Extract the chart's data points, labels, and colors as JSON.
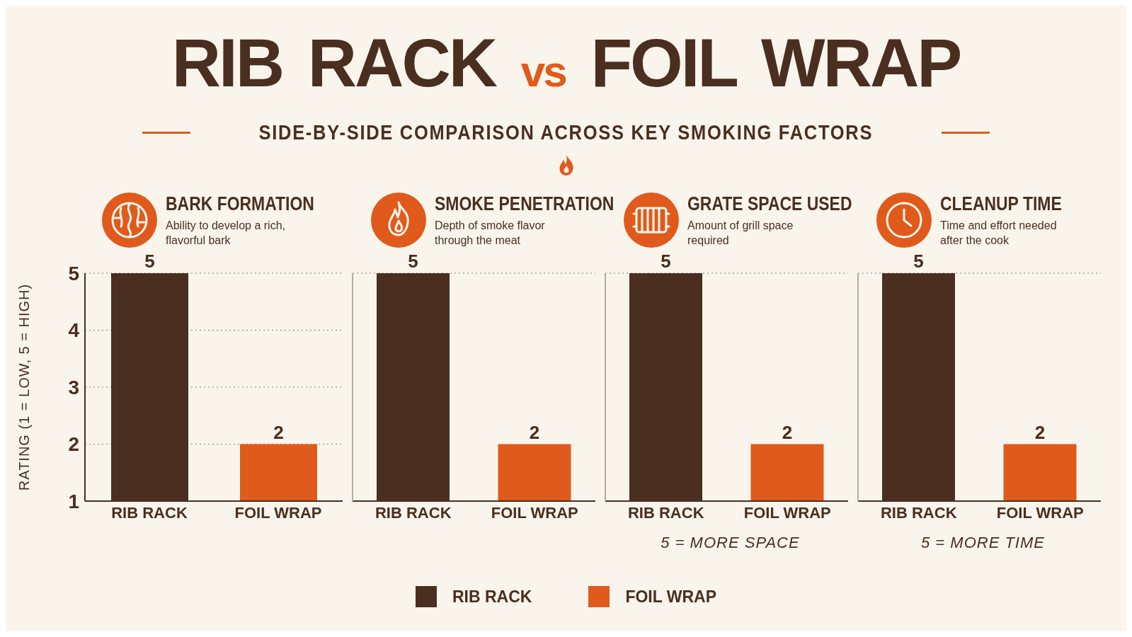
{
  "chart_data": [
    {
      "type": "other",
      "title": "RIB RACK vs FOIL WRAP",
      "subtitle": "SIDE-BY-SIDE COMPARISON ACROSS KEY SMOKING FACTORS"
    },
    {
      "type": "bar",
      "title": "BARK FORMATION",
      "subtitle": "Ability to develop a rich, flavorful bark",
      "ylabel": "RATING (1 = LOW, 5 = HIGH)",
      "categories": [
        "RIB RACK",
        "FOIL WRAP"
      ],
      "stacked": true,
      "series": [
        {
          "name": "RIB RACK",
          "color": "#4a2e20",
          "values": [
            5,
            null
          ]
        },
        {
          "name": "FOIL WRAP",
          "color": "#e05a1c",
          "values": [
            null,
            2
          ]
        }
      ],
      "ylim": [
        1,
        5
      ],
      "yticks": [
        1,
        2,
        3,
        4,
        5
      ],
      "grid": "y",
      "data_labels": true,
      "legend": "bottom"
    },
    {
      "type": "bar",
      "title": "SMOKE PENETRATION",
      "subtitle": "Depth of smoke flavor through the meat",
      "categories": [
        "RIB RACK",
        "FOIL WRAP"
      ],
      "stacked": true,
      "series": [
        {
          "color": "#4a2e20",
          "values": [
            5,
            null
          ]
        },
        {
          "color": "#e05a1c",
          "values": [
            null,
            2
          ]
        }
      ],
      "ylim": [
        1,
        5
      ],
      "yticks": [
        1,
        2,
        3,
        4,
        5
      ],
      "grid": "y",
      "data_labels": true,
      "tick_labels": "x"
    },
    {
      "type": "bar",
      "title": "GRATE SPACE USED",
      "subtitle": "Amount of grill space required",
      "xlabel": "5 = MORE SPACE",
      "categories": [
        "RIB RACK",
        "FOIL WRAP"
      ],
      "stacked": true,
      "series": [
        {
          "color": "#4a2e20",
          "values": [
            5,
            null
          ]
        },
        {
          "color": "#e05a1c",
          "values": [
            null,
            2
          ]
        }
      ],
      "ylim": [
        1,
        5
      ],
      "yticks": [
        1,
        2,
        3,
        4,
        5
      ],
      "grid": "y",
      "data_labels": true,
      "tick_labels": "x"
    },
    {
      "type": "bar",
      "title": "CLEANUP TIME",
      "subtitle": "Time and effort needed after the cook",
      "xlabel": "5 = MORE TIME",
      "categories": [
        "RIB RACK",
        "FOIL WRAP"
      ],
      "stacked": true,
      "series": [
        {
          "color": "#4a2e20",
          "values": [
            5,
            null
          ]
        },
        {
          "color": "#e05a1c",
          "values": [
            null,
            2
          ]
        }
      ],
      "ylim": [
        1,
        5
      ],
      "yticks": [
        1,
        2,
        3,
        4,
        5
      ],
      "grid": "y",
      "data_labels": true,
      "tick_labels": "x"
    }
  ]
}
